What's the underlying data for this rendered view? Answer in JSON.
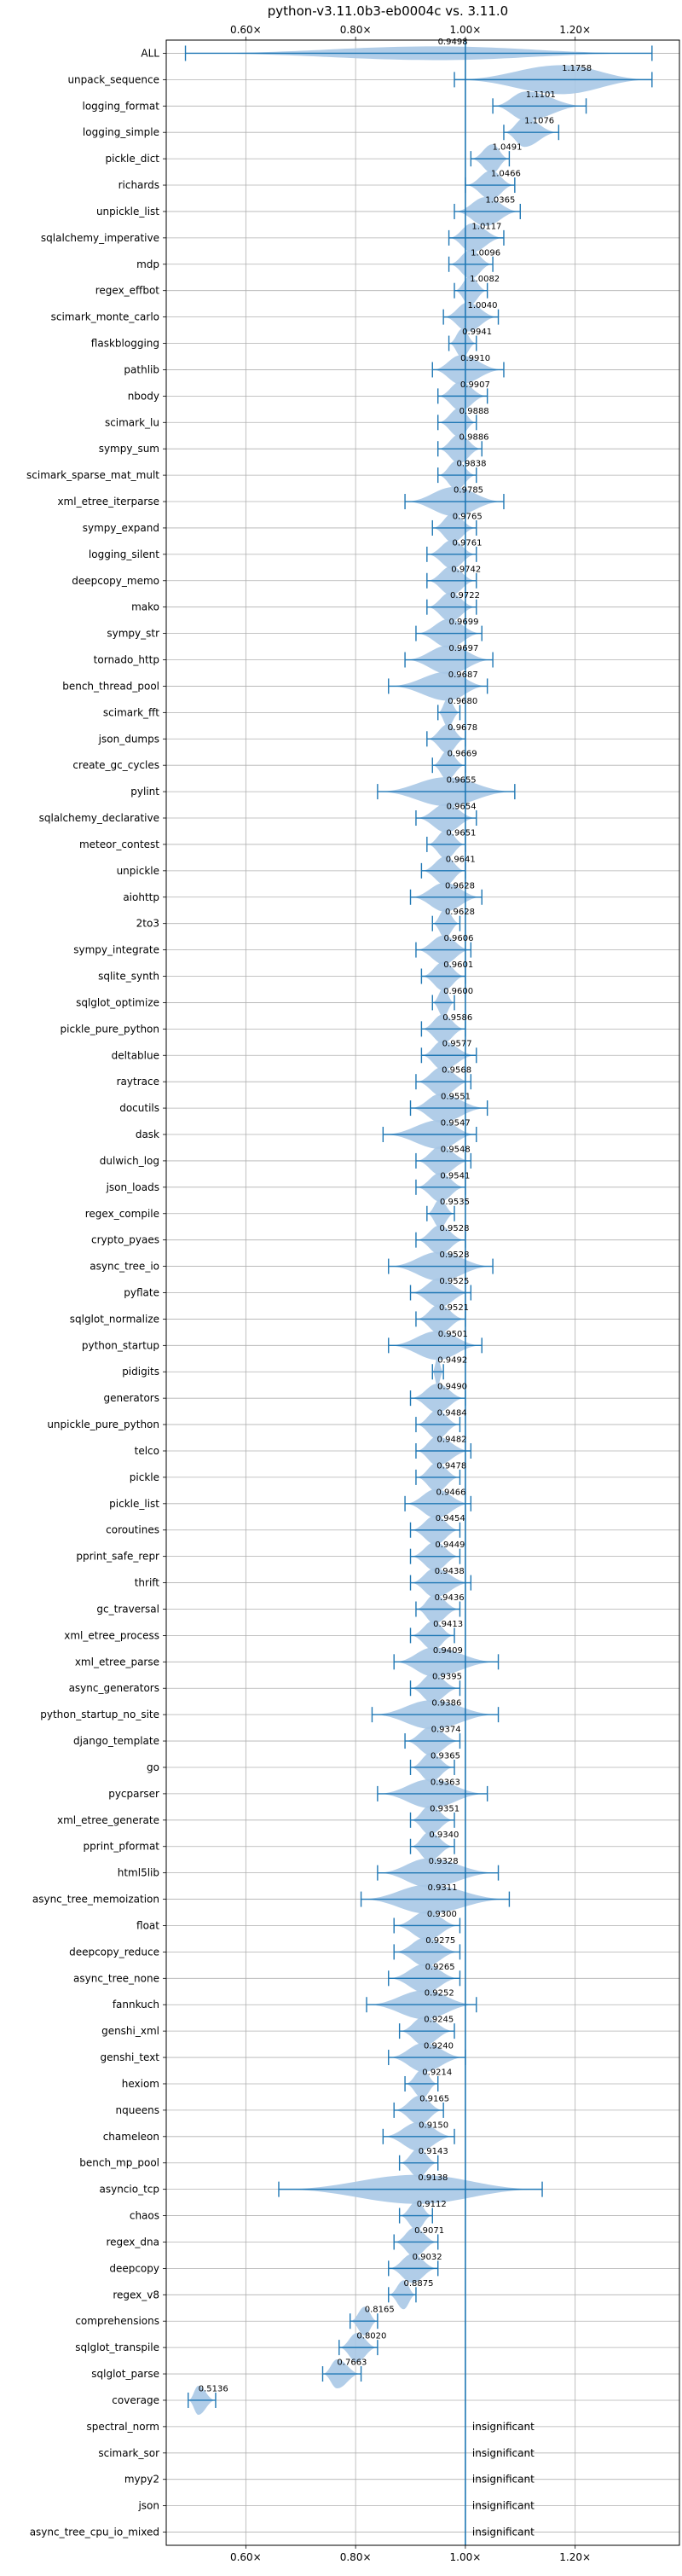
{
  "chart_data": {
    "type": "violin",
    "title": "python-v3.11.0b3-eb0004c vs. 3.11.0",
    "xlabel": "",
    "ylabel": "",
    "xlim": [
      0.455,
      1.39
    ],
    "x_ticks": [
      {
        "value": 0.6,
        "label": "0.60×"
      },
      {
        "value": 0.8,
        "label": "0.80×"
      },
      {
        "value": 1.0,
        "label": "1.00×"
      },
      {
        "value": 1.2,
        "label": "1.20×"
      }
    ],
    "reference_line": 1.0,
    "grid": true,
    "insignificant_label": "insignificant",
    "benchmarks": [
      {
        "name": "ALL",
        "label": "0.9498",
        "mean": 0.9498,
        "min": 0.49,
        "max": 1.34,
        "width": 0.26
      },
      {
        "name": "unpack_sequence",
        "label": "1.1758",
        "mean": 1.1758,
        "min": 0.98,
        "max": 1.34,
        "width": 0.55
      },
      {
        "name": "logging_format",
        "label": "1.1101",
        "mean": 1.1101,
        "min": 1.05,
        "max": 1.22,
        "width": 0.55
      },
      {
        "name": "logging_simple",
        "label": "1.1076",
        "mean": 1.1076,
        "min": 1.07,
        "max": 1.17,
        "width": 0.55
      },
      {
        "name": "pickle_dict",
        "label": "1.0491",
        "mean": 1.0491,
        "min": 1.01,
        "max": 1.08,
        "width": 0.55
      },
      {
        "name": "richards",
        "label": "1.0466",
        "mean": 1.0466,
        "min": 1.0,
        "max": 1.09,
        "width": 0.55
      },
      {
        "name": "unpickle_list",
        "label": "1.0365",
        "mean": 1.0365,
        "min": 0.98,
        "max": 1.1,
        "width": 0.55
      },
      {
        "name": "sqlalchemy_imperative",
        "label": "1.0117",
        "mean": 1.0117,
        "min": 0.97,
        "max": 1.07,
        "width": 0.55
      },
      {
        "name": "mdp",
        "label": "1.0096",
        "mean": 1.0096,
        "min": 0.97,
        "max": 1.05,
        "width": 0.55
      },
      {
        "name": "regex_effbot",
        "label": "1.0082",
        "mean": 1.0082,
        "min": 0.98,
        "max": 1.04,
        "width": 0.55
      },
      {
        "name": "scimark_monte_carlo",
        "label": "1.0040",
        "mean": 1.004,
        "min": 0.96,
        "max": 1.06,
        "width": 0.55
      },
      {
        "name": "flaskblogging",
        "label": "0.9941",
        "mean": 0.9941,
        "min": 0.97,
        "max": 1.02,
        "width": 0.55
      },
      {
        "name": "pathlib",
        "label": "0.9910",
        "mean": 0.991,
        "min": 0.94,
        "max": 1.07,
        "width": 0.55
      },
      {
        "name": "nbody",
        "label": "0.9907",
        "mean": 0.9907,
        "min": 0.95,
        "max": 1.04,
        "width": 0.55
      },
      {
        "name": "scimark_lu",
        "label": "0.9888",
        "mean": 0.9888,
        "min": 0.95,
        "max": 1.02,
        "width": 0.55
      },
      {
        "name": "sympy_sum",
        "label": "0.9886",
        "mean": 0.9886,
        "min": 0.95,
        "max": 1.03,
        "width": 0.55
      },
      {
        "name": "scimark_sparse_mat_mult",
        "label": "0.9838",
        "mean": 0.9838,
        "min": 0.95,
        "max": 1.02,
        "width": 0.55
      },
      {
        "name": "xml_etree_iterparse",
        "label": "0.9785",
        "mean": 0.9785,
        "min": 0.89,
        "max": 1.07,
        "width": 0.55
      },
      {
        "name": "sympy_expand",
        "label": "0.9765",
        "mean": 0.9765,
        "min": 0.94,
        "max": 1.02,
        "width": 0.55
      },
      {
        "name": "logging_silent",
        "label": "0.9761",
        "mean": 0.9761,
        "min": 0.93,
        "max": 1.02,
        "width": 0.55
      },
      {
        "name": "deepcopy_memo",
        "label": "0.9742",
        "mean": 0.9742,
        "min": 0.93,
        "max": 1.02,
        "width": 0.55
      },
      {
        "name": "mako",
        "label": "0.9722",
        "mean": 0.9722,
        "min": 0.93,
        "max": 1.02,
        "width": 0.55
      },
      {
        "name": "sympy_str",
        "label": "0.9699",
        "mean": 0.9699,
        "min": 0.91,
        "max": 1.03,
        "width": 0.55
      },
      {
        "name": "tornado_http",
        "label": "0.9697",
        "mean": 0.9697,
        "min": 0.89,
        "max": 1.05,
        "width": 0.55
      },
      {
        "name": "bench_thread_pool",
        "label": "0.9687",
        "mean": 0.9687,
        "min": 0.86,
        "max": 1.04,
        "width": 0.55
      },
      {
        "name": "scimark_fft",
        "label": "0.9680",
        "mean": 0.968,
        "min": 0.95,
        "max": 0.99,
        "width": 0.55
      },
      {
        "name": "json_dumps",
        "label": "0.9678",
        "mean": 0.9678,
        "min": 0.93,
        "max": 1.0,
        "width": 0.55
      },
      {
        "name": "create_gc_cycles",
        "label": "0.9669",
        "mean": 0.9669,
        "min": 0.94,
        "max": 1.0,
        "width": 0.55
      },
      {
        "name": "pylint",
        "label": "0.9655",
        "mean": 0.9655,
        "min": 0.84,
        "max": 1.09,
        "width": 0.55
      },
      {
        "name": "sqlalchemy_declarative",
        "label": "0.9654",
        "mean": 0.9654,
        "min": 0.91,
        "max": 1.02,
        "width": 0.55
      },
      {
        "name": "meteor_contest",
        "label": "0.9651",
        "mean": 0.9651,
        "min": 0.93,
        "max": 1.0,
        "width": 0.55
      },
      {
        "name": "unpickle",
        "label": "0.9641",
        "mean": 0.9641,
        "min": 0.92,
        "max": 1.0,
        "width": 0.55
      },
      {
        "name": "aiohttp",
        "label": "0.9628",
        "mean": 0.9628,
        "min": 0.9,
        "max": 1.03,
        "width": 0.55
      },
      {
        "name": "2to3",
        "label": "0.9628",
        "mean": 0.9628,
        "min": 0.94,
        "max": 0.99,
        "width": 0.55
      },
      {
        "name": "sympy_integrate",
        "label": "0.9606",
        "mean": 0.9606,
        "min": 0.91,
        "max": 1.01,
        "width": 0.55
      },
      {
        "name": "sqlite_synth",
        "label": "0.9601",
        "mean": 0.9601,
        "min": 0.92,
        "max": 1.0,
        "width": 0.55
      },
      {
        "name": "sqlglot_optimize",
        "label": "0.9600",
        "mean": 0.96,
        "min": 0.94,
        "max": 0.98,
        "width": 0.55
      },
      {
        "name": "pickle_pure_python",
        "label": "0.9586",
        "mean": 0.9586,
        "min": 0.92,
        "max": 1.0,
        "width": 0.55
      },
      {
        "name": "deltablue",
        "label": "0.9577",
        "mean": 0.9577,
        "min": 0.92,
        "max": 1.02,
        "width": 0.55
      },
      {
        "name": "raytrace",
        "label": "0.9568",
        "mean": 0.9568,
        "min": 0.91,
        "max": 1.01,
        "width": 0.55
      },
      {
        "name": "docutils",
        "label": "0.9551",
        "mean": 0.9551,
        "min": 0.9,
        "max": 1.04,
        "width": 0.55
      },
      {
        "name": "dask",
        "label": "0.9547",
        "mean": 0.9547,
        "min": 0.85,
        "max": 1.02,
        "width": 0.55
      },
      {
        "name": "dulwich_log",
        "label": "0.9548",
        "mean": 0.9548,
        "min": 0.91,
        "max": 1.01,
        "width": 0.55
      },
      {
        "name": "json_loads",
        "label": "0.9541",
        "mean": 0.9541,
        "min": 0.91,
        "max": 1.0,
        "width": 0.55
      },
      {
        "name": "regex_compile",
        "label": "0.9535",
        "mean": 0.9535,
        "min": 0.93,
        "max": 0.98,
        "width": 0.55
      },
      {
        "name": "crypto_pyaes",
        "label": "0.9528",
        "mean": 0.9528,
        "min": 0.91,
        "max": 1.0,
        "width": 0.55
      },
      {
        "name": "async_tree_io",
        "label": "0.9528",
        "mean": 0.9528,
        "min": 0.86,
        "max": 1.05,
        "width": 0.55
      },
      {
        "name": "pyflate",
        "label": "0.9525",
        "mean": 0.9525,
        "min": 0.9,
        "max": 1.01,
        "width": 0.55
      },
      {
        "name": "sqlglot_normalize",
        "label": "0.9521",
        "mean": 0.9521,
        "min": 0.91,
        "max": 1.0,
        "width": 0.55
      },
      {
        "name": "python_startup",
        "label": "0.9501",
        "mean": 0.9501,
        "min": 0.86,
        "max": 1.03,
        "width": 0.55
      },
      {
        "name": "pidigits",
        "label": "0.9492",
        "mean": 0.9492,
        "min": 0.94,
        "max": 0.96,
        "width": 0.55
      },
      {
        "name": "generators",
        "label": "0.9490",
        "mean": 0.949,
        "min": 0.9,
        "max": 1.0,
        "width": 0.55
      },
      {
        "name": "unpickle_pure_python",
        "label": "0.9484",
        "mean": 0.9484,
        "min": 0.91,
        "max": 0.99,
        "width": 0.55
      },
      {
        "name": "telco",
        "label": "0.9482",
        "mean": 0.9482,
        "min": 0.91,
        "max": 1.01,
        "width": 0.55
      },
      {
        "name": "pickle",
        "label": "0.9478",
        "mean": 0.9478,
        "min": 0.91,
        "max": 0.99,
        "width": 0.55
      },
      {
        "name": "pickle_list",
        "label": "0.9466",
        "mean": 0.9466,
        "min": 0.89,
        "max": 1.01,
        "width": 0.55
      },
      {
        "name": "coroutines",
        "label": "0.9454",
        "mean": 0.9454,
        "min": 0.9,
        "max": 0.99,
        "width": 0.55
      },
      {
        "name": "pprint_safe_repr",
        "label": "0.9449",
        "mean": 0.9449,
        "min": 0.9,
        "max": 0.99,
        "width": 0.55
      },
      {
        "name": "thrift",
        "label": "0.9438",
        "mean": 0.9438,
        "min": 0.9,
        "max": 1.01,
        "width": 0.55
      },
      {
        "name": "gc_traversal",
        "label": "0.9436",
        "mean": 0.9436,
        "min": 0.91,
        "max": 0.99,
        "width": 0.55
      },
      {
        "name": "xml_etree_process",
        "label": "0.9413",
        "mean": 0.9413,
        "min": 0.9,
        "max": 0.98,
        "width": 0.55
      },
      {
        "name": "xml_etree_parse",
        "label": "0.9409",
        "mean": 0.9409,
        "min": 0.87,
        "max": 1.06,
        "width": 0.55
      },
      {
        "name": "async_generators",
        "label": "0.9395",
        "mean": 0.9395,
        "min": 0.9,
        "max": 0.99,
        "width": 0.55
      },
      {
        "name": "python_startup_no_site",
        "label": "0.9386",
        "mean": 0.9386,
        "min": 0.83,
        "max": 1.06,
        "width": 0.55
      },
      {
        "name": "django_template",
        "label": "0.9374",
        "mean": 0.9374,
        "min": 0.89,
        "max": 0.99,
        "width": 0.55
      },
      {
        "name": "go",
        "label": "0.9365",
        "mean": 0.9365,
        "min": 0.9,
        "max": 0.98,
        "width": 0.55
      },
      {
        "name": "pycparser",
        "label": "0.9363",
        "mean": 0.9363,
        "min": 0.84,
        "max": 1.04,
        "width": 0.55
      },
      {
        "name": "xml_etree_generate",
        "label": "0.9351",
        "mean": 0.9351,
        "min": 0.9,
        "max": 0.98,
        "width": 0.55
      },
      {
        "name": "pprint_pformat",
        "label": "0.9340",
        "mean": 0.934,
        "min": 0.9,
        "max": 0.98,
        "width": 0.55
      },
      {
        "name": "html5lib",
        "label": "0.9328",
        "mean": 0.9328,
        "min": 0.84,
        "max": 1.06,
        "width": 0.55
      },
      {
        "name": "async_tree_memoization",
        "label": "0.9311",
        "mean": 0.9311,
        "min": 0.81,
        "max": 1.08,
        "width": 0.55
      },
      {
        "name": "float",
        "label": "0.9300",
        "mean": 0.93,
        "min": 0.87,
        "max": 0.99,
        "width": 0.55
      },
      {
        "name": "deepcopy_reduce",
        "label": "0.9275",
        "mean": 0.9275,
        "min": 0.87,
        "max": 0.99,
        "width": 0.55
      },
      {
        "name": "async_tree_none",
        "label": "0.9265",
        "mean": 0.9265,
        "min": 0.86,
        "max": 0.99,
        "width": 0.55
      },
      {
        "name": "fannkuch",
        "label": "0.9252",
        "mean": 0.9252,
        "min": 0.82,
        "max": 1.02,
        "width": 0.55
      },
      {
        "name": "genshi_xml",
        "label": "0.9245",
        "mean": 0.9245,
        "min": 0.88,
        "max": 0.98,
        "width": 0.55
      },
      {
        "name": "genshi_text",
        "label": "0.9240",
        "mean": 0.924,
        "min": 0.86,
        "max": 1.0,
        "width": 0.55
      },
      {
        "name": "hexiom",
        "label": "0.9214",
        "mean": 0.9214,
        "min": 0.89,
        "max": 0.95,
        "width": 0.55
      },
      {
        "name": "nqueens",
        "label": "0.9165",
        "mean": 0.9165,
        "min": 0.87,
        "max": 0.96,
        "width": 0.55
      },
      {
        "name": "chameleon",
        "label": "0.9150",
        "mean": 0.915,
        "min": 0.85,
        "max": 0.98,
        "width": 0.55
      },
      {
        "name": "bench_mp_pool",
        "label": "0.9143",
        "mean": 0.9143,
        "min": 0.88,
        "max": 0.95,
        "width": 0.55
      },
      {
        "name": "asyncio_tcp",
        "label": "0.9138",
        "mean": 0.9138,
        "min": 0.66,
        "max": 1.14,
        "width": 0.55
      },
      {
        "name": "chaos",
        "label": "0.9112",
        "mean": 0.9112,
        "min": 0.88,
        "max": 0.94,
        "width": 0.55
      },
      {
        "name": "regex_dna",
        "label": "0.9071",
        "mean": 0.9071,
        "min": 0.87,
        "max": 0.95,
        "width": 0.55
      },
      {
        "name": "deepcopy",
        "label": "0.9032",
        "mean": 0.9032,
        "min": 0.86,
        "max": 0.95,
        "width": 0.55
      },
      {
        "name": "regex_v8",
        "label": "0.8875",
        "mean": 0.8875,
        "min": 0.86,
        "max": 0.91,
        "width": 0.55
      },
      {
        "name": "comprehensions",
        "label": "0.8165",
        "mean": 0.8165,
        "min": 0.79,
        "max": 0.84,
        "width": 0.55
      },
      {
        "name": "sqlglot_transpile",
        "label": "0.8020",
        "mean": 0.802,
        "min": 0.77,
        "max": 0.84,
        "width": 0.55
      },
      {
        "name": "sqlglot_parse",
        "label": "0.7663",
        "mean": 0.7663,
        "min": 0.74,
        "max": 0.81,
        "width": 0.55
      },
      {
        "name": "coverage",
        "label": "0.5136",
        "mean": 0.5136,
        "min": 0.495,
        "max": 0.545,
        "width": 0.55
      },
      {
        "name": "spectral_norm",
        "insignificant": true
      },
      {
        "name": "scimark_sor",
        "insignificant": true
      },
      {
        "name": "mypy2",
        "insignificant": true
      },
      {
        "name": "json",
        "insignificant": true
      },
      {
        "name": "async_tree_cpu_io_mixed",
        "insignificant": true
      }
    ]
  },
  "colors": {
    "violin": "#a9c8e6",
    "line": "#1f77b4",
    "grid": "#b0b0b0",
    "axis": "#000000"
  }
}
